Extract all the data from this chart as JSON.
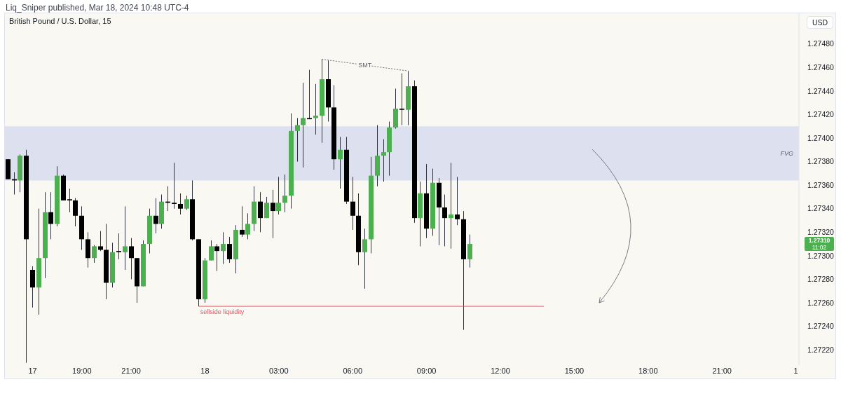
{
  "chart_data": {
    "type": "candlestick",
    "title": "Liq_Sniper published, Mar 18, 2024 10:48 UTC-4",
    "subtitle": "British Pound / U.S. Dollar, 15",
    "ylabel": "USD",
    "categories": [
      null,
      null,
      null,
      null,
      "17",
      null,
      null,
      null,
      null,
      null,
      null,
      null,
      "19:00",
      null,
      null,
      null,
      null,
      null,
      null,
      null,
      "21:00",
      null,
      null,
      null,
      null,
      null,
      null,
      null,
      null,
      null,
      null,
      null,
      "18",
      null,
      null,
      null,
      null,
      null,
      null,
      null,
      null,
      null,
      null,
      null,
      "03:00",
      null,
      null,
      null,
      null,
      null,
      null,
      null,
      null,
      null,
      null,
      null,
      "06:00",
      null,
      null,
      null,
      null,
      null,
      null,
      null,
      null,
      null,
      null,
      null,
      "09:00",
      null,
      null,
      null,
      null,
      null,
      null,
      null,
      null,
      null,
      null,
      null,
      "12:00",
      null,
      null,
      null,
      null,
      null,
      null,
      null,
      null,
      null,
      null,
      null,
      "15:00",
      null,
      null,
      null,
      null,
      null,
      null,
      null,
      null,
      null,
      null,
      null,
      "18:00",
      null,
      null,
      null,
      null,
      null,
      null,
      null,
      null,
      null,
      null,
      null,
      "21:00",
      null,
      null,
      null,
      null,
      null,
      null,
      null,
      null,
      null,
      null,
      null,
      "1"
    ],
    "ohlc": [
      [
        1.27382,
        1.27382,
        1.27365,
        1.27365
      ],
      [
        1.27365,
        1.27371,
        1.27352,
        1.27364
      ],
      [
        1.27364,
        1.27386,
        1.27354,
        1.27385
      ],
      [
        1.27385,
        1.2739,
        1.27209,
        1.27314
      ],
      [
        1.27288,
        1.27291,
        1.27256,
        1.27273
      ],
      [
        1.27273,
        1.2734,
        1.2725,
        1.27298
      ],
      [
        1.27298,
        1.27354,
        1.27281,
        1.27337
      ],
      [
        1.27337,
        1.27354,
        1.27314,
        1.27327
      ],
      [
        1.27327,
        1.27376,
        1.27325,
        1.27368
      ],
      [
        1.27368,
        1.27369,
        1.27347,
        1.27347
      ],
      [
        1.27348,
        1.27357,
        1.27337,
        1.27347
      ],
      [
        1.27347,
        1.27349,
        1.27325,
        1.27334
      ],
      [
        1.27334,
        1.27342,
        1.27305,
        1.27314
      ],
      [
        1.27314,
        1.2732,
        1.2729,
        1.27298
      ],
      [
        1.27298,
        1.27309,
        1.27294,
        1.27308
      ],
      [
        1.27308,
        1.27321,
        1.27304,
        1.27305
      ],
      [
        1.27305,
        1.27327,
        1.27263,
        1.27277
      ],
      [
        1.27277,
        1.27311,
        1.27273,
        1.27303
      ],
      [
        1.27304,
        1.27319,
        1.27297,
        1.27303
      ],
      [
        1.27303,
        1.27342,
        1.27288,
        1.27308
      ],
      [
        1.27308,
        1.27315,
        1.2728,
        1.27298
      ],
      [
        1.27298,
        1.27298,
        1.2726,
        1.27274
      ],
      [
        1.27274,
        1.27313,
        1.27274,
        1.2731
      ],
      [
        1.2731,
        1.2734,
        1.27302,
        1.27334
      ],
      [
        1.27334,
        1.27349,
        1.27319,
        1.27327
      ],
      [
        1.27327,
        1.27352,
        1.27323,
        1.27346
      ],
      [
        1.27346,
        1.27359,
        1.27338,
        1.27345
      ],
      [
        1.27345,
        1.27379,
        1.2734,
        1.27344
      ],
      [
        1.27344,
        1.27353,
        1.27335,
        1.2734
      ],
      [
        1.2734,
        1.27351,
        1.27339,
        1.27348
      ],
      [
        1.27348,
        1.27364,
        1.27313,
        1.27314
      ],
      [
        1.27314,
        1.27314,
        1.27257,
        1.27263
      ],
      [
        1.27263,
        1.27298,
        1.2726,
        1.27296
      ],
      [
        1.27296,
        1.27313,
        1.27296,
        1.27308
      ],
      [
        1.27308,
        1.2731,
        1.27287,
        1.27304
      ],
      [
        1.27304,
        1.2732,
        1.27293,
        1.2731
      ],
      [
        1.2731,
        1.27316,
        1.27294,
        1.27297
      ],
      [
        1.27297,
        1.27326,
        1.27285,
        1.27322
      ],
      [
        1.27322,
        1.27342,
        1.27316,
        1.27318
      ],
      [
        1.27318,
        1.27336,
        1.27314,
        1.27327
      ],
      [
        1.27327,
        1.27359,
        1.27321,
        1.27346
      ],
      [
        1.27346,
        1.27354,
        1.2732,
        1.27332
      ],
      [
        1.27332,
        1.2735,
        1.27332,
        1.27345
      ],
      [
        1.27345,
        1.27356,
        1.27315,
        1.27338
      ],
      [
        1.27338,
        1.27367,
        1.27335,
        1.27345
      ],
      [
        1.27345,
        1.27369,
        1.27337,
        1.27351
      ],
      [
        1.27351,
        1.27421,
        1.2734,
        1.27406
      ],
      [
        1.27406,
        1.27417,
        1.2738,
        1.27411
      ],
      [
        1.27411,
        1.27447,
        1.27375,
        1.27417
      ],
      [
        1.27417,
        1.27458,
        1.27416,
        1.27416
      ],
      [
        1.27417,
        1.27446,
        1.27403,
        1.27419
      ],
      [
        1.27419,
        1.27467,
        1.27396,
        1.2745
      ],
      [
        1.2745,
        1.27466,
        1.27414,
        1.27426
      ],
      [
        1.27426,
        1.27445,
        1.27373,
        1.27382
      ],
      [
        1.27382,
        1.27401,
        1.27357,
        1.2739
      ],
      [
        1.2739,
        1.27401,
        1.27344,
        1.27346
      ],
      [
        1.27346,
        1.27367,
        1.27322,
        1.27334
      ],
      [
        1.27334,
        1.27353,
        1.27292,
        1.27303
      ],
      [
        1.27303,
        1.27323,
        1.27272,
        1.27314
      ],
      [
        1.27314,
        1.27384,
        1.27302,
        1.27368
      ],
      [
        1.27368,
        1.27411,
        1.27359,
        1.27385
      ],
      [
        1.27385,
        1.27399,
        1.27363,
        1.27388
      ],
      [
        1.27388,
        1.27414,
        1.27368,
        1.27409
      ],
      [
        1.27409,
        1.27442,
        1.27408,
        1.27425
      ],
      [
        1.27425,
        1.27455,
        1.27411,
        1.27424
      ],
      [
        1.27424,
        1.27457,
        1.27411,
        1.27444
      ],
      [
        1.27444,
        1.27449,
        1.27328,
        1.27332
      ],
      [
        1.27332,
        1.27363,
        1.27308,
        1.27353
      ],
      [
        1.27353,
        1.27378,
        1.27315,
        1.27323
      ],
      [
        1.27323,
        1.27374,
        1.27317,
        1.27362
      ],
      [
        1.27362,
        1.27366,
        1.27309,
        1.27341
      ],
      [
        1.27341,
        1.27352,
        1.27308,
        1.27332
      ],
      [
        1.27332,
        1.27379,
        1.27306,
        1.27335
      ],
      [
        1.27335,
        1.27367,
        1.27326,
        1.27331
      ],
      [
        1.27331,
        1.27338,
        1.27237,
        1.27297
      ],
      [
        1.27297,
        1.27318,
        1.2729,
        1.2731
      ],
      null,
      null,
      null,
      null,
      null,
      null,
      null,
      null,
      null,
      null,
      null,
      null,
      null,
      null,
      null,
      null,
      null,
      null,
      null,
      null,
      null,
      null,
      null,
      null,
      null,
      null,
      null,
      null,
      null,
      null,
      null,
      null,
      null,
      null,
      null,
      null,
      null,
      null,
      null,
      null,
      null,
      null,
      null,
      null,
      null,
      null,
      null,
      null,
      null,
      null,
      null,
      null,
      null
    ],
    "colors": [
      "#000000",
      "#000000",
      "#4caf50",
      "#000000",
      "#000000",
      "#4caf50",
      "#4caf50",
      "#000000",
      "#4caf50",
      "#000000",
      "#000000",
      "#000000",
      "#000000",
      "#000000",
      "#4caf50",
      "#000000",
      "#000000",
      "#4caf50",
      "#000000",
      "#4caf50",
      "#000000",
      "#000000",
      "#4caf50",
      "#4caf50",
      "#000000",
      "#4caf50",
      "#000000",
      "#000000",
      "#000000",
      "#4caf50",
      "#000000",
      "#000000",
      "#4caf50",
      "#4caf50",
      "#000000",
      "#4caf50",
      "#000000",
      "#4caf50",
      "#000000",
      "#4caf50",
      "#4caf50",
      "#000000",
      "#4caf50",
      "#000000",
      "#4caf50",
      "#4caf50",
      "#4caf50",
      "#4caf50",
      "#4caf50",
      "#000000",
      "#4caf50",
      "#4caf50",
      "#000000",
      "#000000",
      "#4caf50",
      "#000000",
      "#000000",
      "#000000",
      "#4caf50",
      "#4caf50",
      "#4caf50",
      "#4caf50",
      "#4caf50",
      "#4caf50",
      "#000000",
      "#4caf50",
      "#000000",
      "#4caf50",
      "#000000",
      "#4caf50",
      "#000000",
      "#000000",
      "#4caf50",
      "#000000",
      "#000000",
      "#4caf50",
      null,
      null,
      null,
      null,
      null,
      null,
      null,
      null,
      null,
      null,
      null,
      null,
      null,
      null,
      null,
      null,
      null,
      null,
      null,
      null,
      null,
      null,
      null,
      null,
      null,
      null,
      null,
      null,
      null,
      null,
      null,
      null,
      null,
      null,
      null,
      null,
      null,
      null,
      null,
      null,
      null,
      null,
      null,
      null,
      null,
      null,
      null,
      null,
      null,
      null,
      null,
      null,
      null
    ],
    "series": [
      {
        "type": "line",
        "name": "SMT",
        "color": "#787b86",
        "line_style": "dotted",
        "values": [
          null,
          null,
          null,
          null,
          null,
          null,
          null,
          null,
          null,
          null,
          null,
          null,
          null,
          null,
          null,
          null,
          null,
          null,
          null,
          null,
          null,
          null,
          null,
          null,
          null,
          null,
          null,
          null,
          null,
          null,
          null,
          null,
          null,
          null,
          null,
          null,
          null,
          null,
          null,
          null,
          null,
          null,
          null,
          null,
          null,
          null,
          null,
          null,
          null,
          null,
          null,
          1.27467,
          null,
          null,
          null,
          null,
          null,
          null,
          null,
          null,
          null,
          null,
          null,
          null,
          null,
          1.27457,
          null,
          null,
          null,
          null,
          null,
          null,
          null,
          null,
          null,
          null,
          null,
          null,
          null,
          null,
          null,
          null,
          null,
          null,
          null,
          null,
          null,
          null,
          null,
          null,
          null,
          null,
          null,
          null,
          null,
          null,
          null,
          null,
          null,
          null,
          null,
          null,
          null,
          null,
          null,
          null,
          null,
          null,
          null,
          null,
          null,
          null,
          null,
          null,
          null,
          null,
          null,
          null,
          null,
          null,
          null,
          null,
          null,
          null,
          null,
          null,
          null,
          null,
          null
        ]
      },
      {
        "type": "line",
        "name": "sellside liquidity",
        "color": "#ef4f5f",
        "values": [
          null,
          null,
          null,
          null,
          null,
          null,
          null,
          null,
          null,
          null,
          null,
          null,
          null,
          null,
          null,
          null,
          null,
          null,
          null,
          null,
          null,
          null,
          null,
          null,
          null,
          null,
          null,
          null,
          null,
          null,
          null,
          1.27257,
          null,
          null,
          null,
          null,
          null,
          null,
          null,
          null,
          null,
          null,
          null,
          null,
          null,
          null,
          null,
          null,
          null,
          null,
          null,
          null,
          null,
          null,
          null,
          null,
          null,
          null,
          null,
          null,
          null,
          null,
          null,
          null,
          null,
          null,
          null,
          null,
          null,
          null,
          null,
          null,
          null,
          null,
          null,
          null,
          null,
          null,
          null,
          null,
          null,
          null,
          null,
          null,
          null,
          null,
          null,
          1.27257,
          null,
          null,
          null,
          null,
          null,
          null,
          null,
          null,
          null,
          null,
          null,
          null,
          null,
          null,
          null,
          null,
          null,
          null,
          null,
          null,
          null,
          null,
          null,
          null,
          null,
          null,
          null,
          null,
          null,
          null,
          null,
          null,
          null,
          null,
          null,
          null,
          null,
          null,
          null,
          null,
          null
        ]
      }
    ],
    "bands": [
      {
        "axis": "y",
        "from": 1.27364,
        "to": 1.2741,
        "label": "FVG",
        "color": "#dde0ee"
      }
    ],
    "annotations": [
      "1.27310",
      "11:02"
    ],
    "ylim": [
      1.27207,
      1.27506
    ],
    "yticks": [
      {
        "value": 1.2722,
        "label": "1.27220"
      },
      {
        "value": 1.2724,
        "label": "1.27240"
      },
      {
        "value": 1.2726,
        "label": "1.27260"
      },
      {
        "value": 1.2728,
        "label": "1.27280"
      },
      {
        "value": 1.273,
        "label": "1.27300"
      },
      {
        "value": 1.2732,
        "label": "1.27320"
      },
      {
        "value": 1.2734,
        "label": "1.27340"
      },
      {
        "value": 1.2736,
        "label": "1.27360"
      },
      {
        "value": 1.2738,
        "label": "1.27380"
      },
      {
        "value": 1.274,
        "label": "1.27400"
      },
      {
        "value": 1.2742,
        "label": "1.27420"
      },
      {
        "value": 1.2744,
        "label": "1.27440"
      },
      {
        "value": 1.2746,
        "label": "1.27460"
      },
      {
        "value": 1.2748,
        "label": "1.27480"
      }
    ]
  }
}
